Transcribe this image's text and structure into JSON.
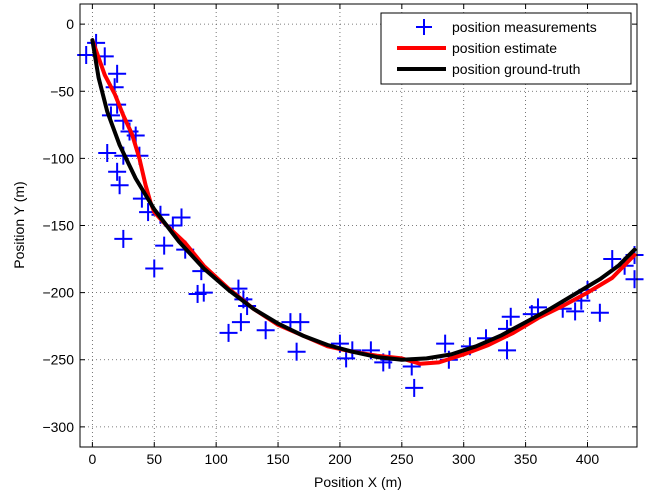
{
  "chart_data": {
    "type": "line",
    "title": "",
    "xlabel": "Position X (m)",
    "ylabel": "Position Y (m)",
    "xlim": [
      -10,
      440
    ],
    "ylim": [
      -315,
      15
    ],
    "xticks": [
      0,
      50,
      100,
      150,
      200,
      250,
      300,
      350,
      400
    ],
    "yticks": [
      0,
      -50,
      -100,
      -150,
      -200,
      -250,
      -300
    ],
    "grid": true,
    "legend_position": "top-right",
    "series": [
      {
        "name": "position measurements",
        "kind": "scatter",
        "marker": "plus",
        "color": "#0000ff",
        "points": [
          [
            -5,
            -23
          ],
          [
            3,
            -14
          ],
          [
            10,
            -24
          ],
          [
            20,
            -37
          ],
          [
            18,
            -47
          ],
          [
            20,
            -60
          ],
          [
            15,
            -68
          ],
          [
            25,
            -72
          ],
          [
            30,
            -80
          ],
          [
            35,
            -83
          ],
          [
            12,
            -96
          ],
          [
            25,
            -98
          ],
          [
            38,
            -98
          ],
          [
            20,
            -110
          ],
          [
            22,
            -120
          ],
          [
            40,
            -130
          ],
          [
            45,
            -140
          ],
          [
            55,
            -142
          ],
          [
            72,
            -144
          ],
          [
            65,
            -150
          ],
          [
            25,
            -160
          ],
          [
            58,
            -165
          ],
          [
            75,
            -168
          ],
          [
            50,
            -182
          ],
          [
            88,
            -184
          ],
          [
            90,
            -200
          ],
          [
            85,
            -201
          ],
          [
            118,
            -197
          ],
          [
            122,
            -205
          ],
          [
            125,
            -210
          ],
          [
            120,
            -222
          ],
          [
            110,
            -230
          ],
          [
            140,
            -228
          ],
          [
            160,
            -222
          ],
          [
            168,
            -222
          ],
          [
            165,
            -244
          ],
          [
            200,
            -238
          ],
          [
            210,
            -243
          ],
          [
            205,
            -249
          ],
          [
            225,
            -243
          ],
          [
            235,
            -252
          ],
          [
            240,
            -250
          ],
          [
            258,
            -255
          ],
          [
            260,
            -271
          ],
          [
            285,
            -238
          ],
          [
            288,
            -250
          ],
          [
            305,
            -240
          ],
          [
            318,
            -234
          ],
          [
            335,
            -227
          ],
          [
            338,
            -218
          ],
          [
            335,
            -243
          ],
          [
            355,
            -216
          ],
          [
            360,
            -211
          ],
          [
            380,
            -212
          ],
          [
            390,
            -214
          ],
          [
            395,
            -206
          ],
          [
            400,
            -198
          ],
          [
            410,
            -215
          ],
          [
            420,
            -175
          ],
          [
            430,
            -180
          ],
          [
            438,
            -172
          ],
          [
            438,
            -190
          ]
        ]
      },
      {
        "name": "position estimate",
        "kind": "line",
        "color": "#ff0000",
        "points": [
          [
            0,
            -12
          ],
          [
            5,
            -25
          ],
          [
            10,
            -38
          ],
          [
            18,
            -52
          ],
          [
            25,
            -68
          ],
          [
            32,
            -82
          ],
          [
            38,
            -100
          ],
          [
            43,
            -120
          ],
          [
            47,
            -133
          ],
          [
            50,
            -140
          ],
          [
            60,
            -150
          ],
          [
            75,
            -163
          ],
          [
            90,
            -180
          ],
          [
            110,
            -197
          ],
          [
            130,
            -212
          ],
          [
            150,
            -224
          ],
          [
            170,
            -232
          ],
          [
            190,
            -240
          ],
          [
            210,
            -244
          ],
          [
            230,
            -247
          ],
          [
            250,
            -249
          ],
          [
            265,
            -253
          ],
          [
            280,
            -252
          ],
          [
            300,
            -246
          ],
          [
            320,
            -239
          ],
          [
            340,
            -230
          ],
          [
            360,
            -219
          ],
          [
            380,
            -210
          ],
          [
            400,
            -200
          ],
          [
            420,
            -189
          ],
          [
            438,
            -172
          ]
        ]
      },
      {
        "name": "position ground-truth",
        "kind": "line",
        "color": "#000000",
        "points": [
          [
            0,
            -12
          ],
          [
            5,
            -40
          ],
          [
            12,
            -65
          ],
          [
            22,
            -90
          ],
          [
            35,
            -115
          ],
          [
            50,
            -138
          ],
          [
            70,
            -162
          ],
          [
            90,
            -182
          ],
          [
            110,
            -198
          ],
          [
            130,
            -212
          ],
          [
            150,
            -223
          ],
          [
            170,
            -232
          ],
          [
            190,
            -239
          ],
          [
            210,
            -244
          ],
          [
            230,
            -248
          ],
          [
            250,
            -250
          ],
          [
            270,
            -249
          ],
          [
            290,
            -246
          ],
          [
            310,
            -240
          ],
          [
            330,
            -232
          ],
          [
            350,
            -222
          ],
          [
            370,
            -212
          ],
          [
            390,
            -201
          ],
          [
            410,
            -190
          ],
          [
            425,
            -180
          ],
          [
            438,
            -168
          ]
        ]
      }
    ]
  }
}
